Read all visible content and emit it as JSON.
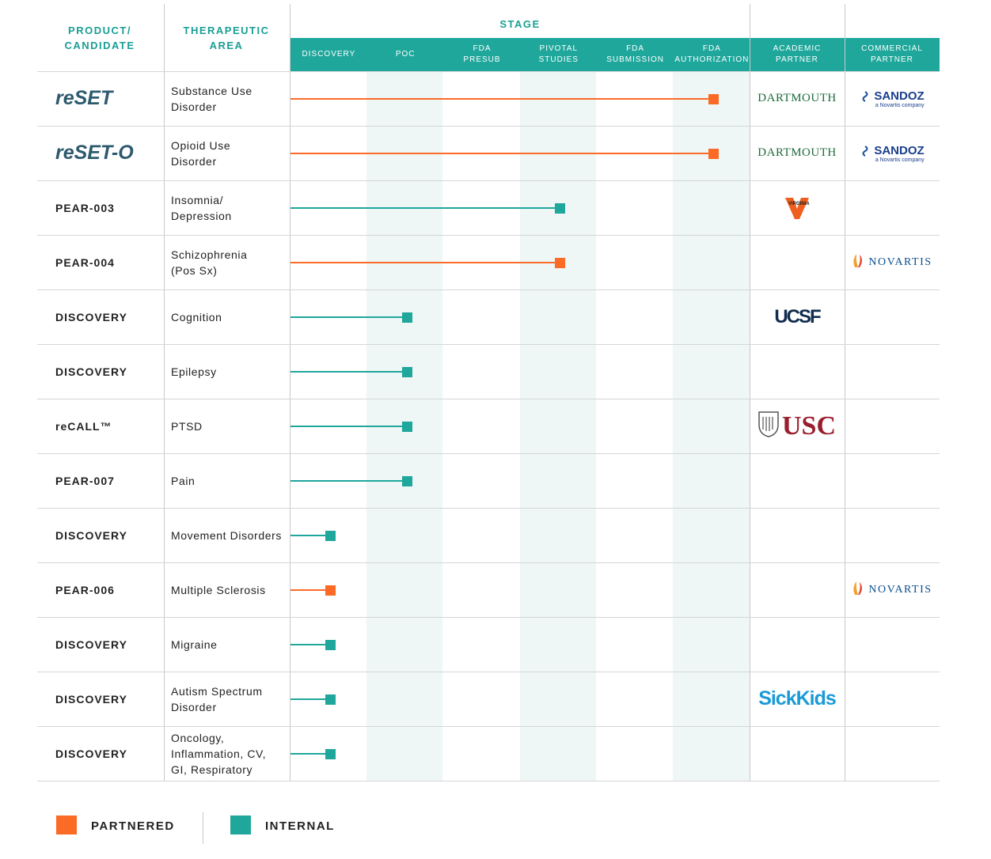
{
  "header": {
    "product": "PRODUCT/\nCANDIDATE",
    "area": "THERAPEUTIC\nAREA",
    "stage": "STAGE",
    "academic": "ACADEMIC\nPARTNER",
    "commercial": "COMMERCIAL\nPARTNER"
  },
  "stages": [
    "DISCOVERY",
    "POC",
    "FDA\nPRESUB",
    "PIVOTAL\nSTUDIES",
    "FDA\nSUBMISSION",
    "FDA\nAUTHORIZATION"
  ],
  "colors": {
    "partnered": "#fb6b26",
    "internal": "#1fa79c",
    "header_bg": "#1fa79c"
  },
  "chart_data": {
    "type": "bar",
    "orientation": "horizontal",
    "categories": [
      "reSET",
      "reSET-O",
      "PEAR-003",
      "PEAR-004",
      "DISCOVERY",
      "DISCOVERY",
      "reCALL™",
      "PEAR-007",
      "DISCOVERY",
      "PEAR-006",
      "DISCOVERY",
      "DISCOVERY",
      "DISCOVERY"
    ],
    "stage_levels": [
      "DISCOVERY",
      "POC",
      "FDA PRESUB",
      "PIVOTAL STUDIES",
      "FDA SUBMISSION",
      "FDA AUTHORIZATION"
    ],
    "rows": [
      {
        "product": "reSET",
        "product_logo": true,
        "area": "Substance Use\nDisorder",
        "stage_reached": 6,
        "type": "partnered",
        "academic": "DARTMOUTH",
        "commercial": "SANDOZ",
        "commercial_sub": "a Novartis company"
      },
      {
        "product": "reSET-O",
        "product_logo": true,
        "area": "Opioid Use\nDisorder",
        "stage_reached": 6,
        "type": "partnered",
        "academic": "DARTMOUTH",
        "commercial": "SANDOZ",
        "commercial_sub": "a Novartis company"
      },
      {
        "product": "PEAR-003",
        "area": "Insomnia/\nDepression",
        "stage_reached": 4,
        "type": "internal",
        "academic": "VIRGINIA",
        "commercial": ""
      },
      {
        "product": "PEAR-004",
        "area": "Schizophrenia\n(Pos Sx)",
        "stage_reached": 4,
        "type": "partnered",
        "academic": "",
        "commercial": "NOVARTIS"
      },
      {
        "product": "DISCOVERY",
        "area": "Cognition",
        "stage_reached": 2,
        "type": "internal",
        "academic": "UCSF",
        "commercial": ""
      },
      {
        "product": "DISCOVERY",
        "area": "Epilepsy",
        "stage_reached": 2,
        "type": "internal",
        "academic": "",
        "commercial": ""
      },
      {
        "product": "reCALL™",
        "area": "PTSD",
        "stage_reached": 2,
        "type": "internal",
        "academic": "USC",
        "commercial": ""
      },
      {
        "product": "PEAR-007",
        "area": "Pain",
        "stage_reached": 2,
        "type": "internal",
        "academic": "",
        "commercial": ""
      },
      {
        "product": "DISCOVERY",
        "area": "Movement Disorders",
        "stage_reached": 1,
        "type": "internal",
        "academic": "",
        "commercial": ""
      },
      {
        "product": "PEAR-006",
        "area": "Multiple Sclerosis",
        "stage_reached": 1,
        "type": "partnered",
        "academic": "",
        "commercial": "NOVARTIS"
      },
      {
        "product": "DISCOVERY",
        "area": "Migraine",
        "stage_reached": 1,
        "type": "internal",
        "academic": "",
        "commercial": ""
      },
      {
        "product": "DISCOVERY",
        "area": "Autism Spectrum\nDisorder",
        "stage_reached": 1,
        "type": "internal",
        "academic": "SickKids",
        "commercial": ""
      },
      {
        "product": "DISCOVERY",
        "area": "Oncology,\nInflammation, CV,\nGI, Respiratory",
        "stage_reached": 1,
        "type": "internal",
        "academic": "",
        "commercial": ""
      }
    ],
    "legend": [
      {
        "label": "PARTNERED",
        "color": "#fb6b26"
      },
      {
        "label": "INTERNAL",
        "color": "#1fa79c"
      }
    ]
  }
}
